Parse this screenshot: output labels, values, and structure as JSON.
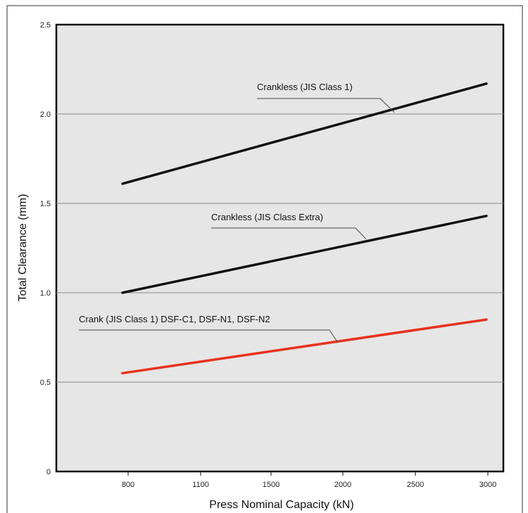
{
  "chart_data": {
    "type": "line",
    "title": "",
    "xlabel": "Press Nominal Capacity (kN)",
    "ylabel": "Total Clearance (mm)",
    "x_tick_labels": [
      "800",
      "1100",
      "1500",
      "2000",
      "2500",
      "3000"
    ],
    "y_tick_labels": [
      "0",
      "0.5",
      "1.0",
      "1.5",
      "2.0",
      "2.5"
    ],
    "ylim": [
      0,
      2.5
    ],
    "grid": "horizontal lines at y tick values",
    "series": [
      {
        "name": "Crankless (JIS Class 1)",
        "color": "#111111",
        "x": [
          "800",
          "3000"
        ],
        "y": [
          1.61,
          2.17
        ]
      },
      {
        "name": "Crankless (JIS Class Extra)",
        "color": "#111111",
        "x": [
          "800",
          "3000"
        ],
        "y": [
          1.0,
          1.43
        ]
      },
      {
        "name": "Crank (JIS Class 1) DSF-C1, DSF-N1, DSF-N2",
        "color": "#e8321c",
        "x": [
          "800",
          "3000"
        ],
        "y": [
          0.55,
          0.85
        ]
      }
    ]
  }
}
